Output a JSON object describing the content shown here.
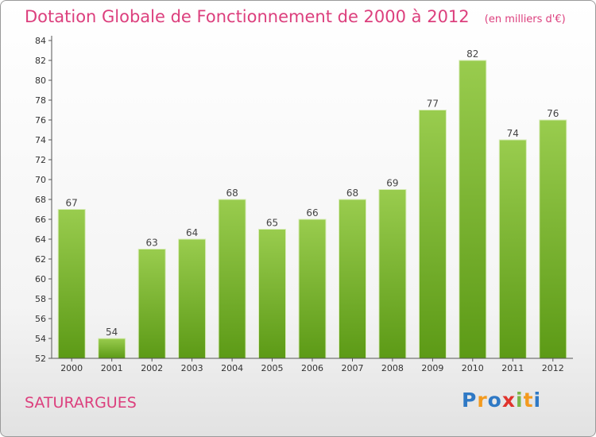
{
  "chart_data": {
    "type": "bar",
    "title": "Dotation Globale de Fonctionnement de 2000 à 2012",
    "subtitle": "(en milliers d'€)",
    "categories": [
      "2000",
      "2001",
      "2002",
      "2003",
      "2004",
      "2005",
      "2006",
      "2007",
      "2008",
      "2009",
      "2010",
      "2011",
      "2012"
    ],
    "values": [
      67,
      54,
      63,
      64,
      68,
      65,
      66,
      68,
      69,
      77,
      82,
      74,
      76
    ],
    "ylim": [
      52,
      84
    ],
    "yticks": [
      52,
      54,
      56,
      58,
      60,
      62,
      64,
      66,
      68,
      70,
      72,
      74,
      76,
      78,
      80,
      82,
      84
    ],
    "xlabel": "",
    "ylabel": "",
    "grid": false,
    "bar_color_top": "#99cc4e",
    "bar_color_bottom": "#5c9a16"
  },
  "commune": "SATURARGUES",
  "logo": {
    "text": "Proxiti",
    "letters": [
      {
        "ch": "P",
        "color": "#2f79c5"
      },
      {
        "ch": "r",
        "color": "#f39a1e"
      },
      {
        "ch": "o",
        "color": "#2f79c5"
      },
      {
        "ch": "x",
        "color": "#e0342d"
      },
      {
        "ch": "i",
        "color": "#7ab648"
      },
      {
        "ch": "t",
        "color": "#f39a1e"
      },
      {
        "ch": "i",
        "color": "#2f79c5"
      }
    ]
  }
}
